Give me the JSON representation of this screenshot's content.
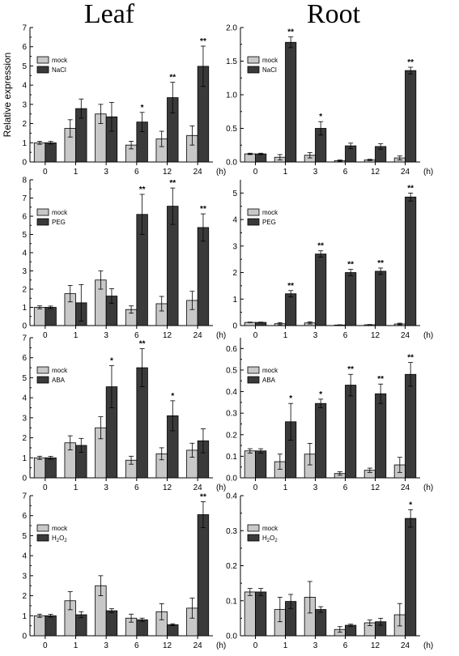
{
  "column_titles": {
    "left": "Leaf",
    "right": "Root"
  },
  "colors": {
    "mock": "#c8c8c8",
    "treatment": "#3a3a3a"
  },
  "chart_data": [
    {
      "id": "leaf-nacl",
      "type": "bar",
      "tissue": "Leaf",
      "categories": [
        "0",
        "1",
        "3",
        "6",
        "12",
        "24"
      ],
      "x_unit": "(h)",
      "ylabel": "Relative expression",
      "ylim": [
        0,
        7
      ],
      "yticks": [
        "0",
        "1",
        "2",
        "3",
        "4",
        "5",
        "6",
        "7"
      ],
      "legend": {
        "mock": "mock",
        "treatment": "NaCl"
      },
      "series": [
        {
          "name": "mock",
          "values": [
            1.0,
            1.75,
            2.5,
            0.88,
            1.2,
            1.38
          ],
          "errors": [
            0.08,
            0.45,
            0.5,
            0.2,
            0.4,
            0.5
          ]
        },
        {
          "name": "NaCl",
          "values": [
            1.0,
            2.78,
            2.35,
            2.08,
            3.35,
            4.98
          ],
          "errors": [
            0.07,
            0.5,
            0.75,
            0.5,
            0.8,
            1.05
          ]
        }
      ],
      "significance": [
        "",
        "",
        "",
        "*",
        "**",
        "**"
      ]
    },
    {
      "id": "root-nacl",
      "type": "bar",
      "tissue": "Root",
      "categories": [
        "0",
        "1",
        "3",
        "6",
        "12",
        "24"
      ],
      "x_unit": "(h)",
      "ylabel": "",
      "ylim": [
        0,
        2.0
      ],
      "yticks": [
        "0.0",
        "0.5",
        "1.0",
        "1.5",
        "2.0"
      ],
      "legend": {
        "mock": "mock",
        "treatment": "NaCl"
      },
      "series": [
        {
          "name": "mock",
          "values": [
            0.12,
            0.07,
            0.1,
            0.02,
            0.03,
            0.06
          ],
          "errors": [
            0.01,
            0.04,
            0.04,
            0.01,
            0.01,
            0.03
          ]
        },
        {
          "name": "NaCl",
          "values": [
            0.12,
            1.78,
            0.5,
            0.24,
            0.23,
            1.36
          ],
          "errors": [
            0.01,
            0.08,
            0.1,
            0.04,
            0.04,
            0.05
          ]
        }
      ],
      "significance": [
        "",
        "**",
        "*",
        "",
        "",
        "**"
      ]
    },
    {
      "id": "leaf-peg",
      "type": "bar",
      "tissue": "Leaf",
      "categories": [
        "0",
        "1",
        "3",
        "6",
        "12",
        "24"
      ],
      "x_unit": "(h)",
      "ylabel": "",
      "ylim": [
        0,
        8
      ],
      "yticks": [
        "0",
        "1",
        "2",
        "3",
        "4",
        "5",
        "6",
        "7",
        "8"
      ],
      "legend": {
        "mock": "mock",
        "treatment": "PEG"
      },
      "series": [
        {
          "name": "mock",
          "values": [
            1.0,
            1.75,
            2.5,
            0.88,
            1.2,
            1.38
          ],
          "errors": [
            0.08,
            0.45,
            0.5,
            0.2,
            0.4,
            0.5
          ]
        },
        {
          "name": "PEG",
          "values": [
            1.0,
            1.25,
            1.62,
            6.1,
            6.55,
            5.38
          ],
          "errors": [
            0.07,
            1.0,
            0.4,
            1.1,
            1.0,
            0.75
          ]
        }
      ],
      "significance": [
        "",
        "",
        "",
        "**",
        "**",
        "**"
      ]
    },
    {
      "id": "root-peg",
      "type": "bar",
      "tissue": "Root",
      "categories": [
        "0",
        "1",
        "3",
        "6",
        "12",
        "24"
      ],
      "x_unit": "(h)",
      "ylabel": "",
      "ylim": [
        0,
        5.5
      ],
      "yticks": [
        "0",
        "1",
        "2",
        "3",
        "4",
        "5"
      ],
      "legend": {
        "mock": "mock",
        "treatment": "PEG"
      },
      "series": [
        {
          "name": "mock",
          "values": [
            0.12,
            0.07,
            0.1,
            0.02,
            0.03,
            0.06
          ],
          "errors": [
            0.01,
            0.04,
            0.04,
            0.01,
            0.01,
            0.03
          ]
        },
        {
          "name": "PEG",
          "values": [
            0.12,
            1.2,
            2.7,
            2.0,
            2.05,
            4.85
          ],
          "errors": [
            0.01,
            0.12,
            0.12,
            0.12,
            0.12,
            0.15
          ]
        }
      ],
      "significance": [
        "",
        "**",
        "**",
        "**",
        "**",
        "**"
      ]
    },
    {
      "id": "leaf-aba",
      "type": "bar",
      "tissue": "Leaf",
      "categories": [
        "0",
        "1",
        "3",
        "6",
        "12",
        "24"
      ],
      "x_unit": "(h)",
      "ylabel": "",
      "ylim": [
        0,
        7
      ],
      "yticks": [
        "0",
        "1",
        "2",
        "3",
        "4",
        "5",
        "6",
        "7"
      ],
      "legend": {
        "mock": "mock",
        "treatment": "ABA"
      },
      "series": [
        {
          "name": "mock",
          "values": [
            1.0,
            1.75,
            2.5,
            0.88,
            1.2,
            1.38
          ],
          "errors": [
            0.08,
            0.35,
            0.55,
            0.2,
            0.3,
            0.35
          ]
        },
        {
          "name": "ABA",
          "values": [
            1.0,
            1.62,
            4.55,
            5.5,
            3.1,
            1.85
          ],
          "errors": [
            0.07,
            0.35,
            1.05,
            0.95,
            0.75,
            0.6
          ]
        }
      ],
      "significance": [
        "",
        "",
        "*",
        "**",
        "*",
        ""
      ]
    },
    {
      "id": "root-aba",
      "type": "bar",
      "tissue": "Root",
      "categories": [
        "0",
        "1",
        "3",
        "6",
        "12",
        "24"
      ],
      "x_unit": "(h)",
      "ylabel": "",
      "ylim": [
        0,
        0.65
      ],
      "yticks": [
        "0.0",
        "0.1",
        "0.2",
        "0.3",
        "0.4",
        "0.5",
        "0.6"
      ],
      "legend": {
        "mock": "mock",
        "treatment": "ABA"
      },
      "series": [
        {
          "name": "mock",
          "values": [
            0.125,
            0.075,
            0.11,
            0.02,
            0.035,
            0.06
          ],
          "errors": [
            0.01,
            0.035,
            0.05,
            0.008,
            0.01,
            0.035
          ]
        },
        {
          "name": "ABA",
          "values": [
            0.125,
            0.26,
            0.345,
            0.43,
            0.39,
            0.48
          ],
          "errors": [
            0.01,
            0.085,
            0.02,
            0.05,
            0.045,
            0.055
          ]
        }
      ],
      "significance": [
        "",
        "*",
        "*",
        "**",
        "**",
        "**"
      ]
    },
    {
      "id": "leaf-h2o2",
      "type": "bar",
      "tissue": "Leaf",
      "categories": [
        "0",
        "1",
        "3",
        "6",
        "12",
        "24"
      ],
      "x_unit": "(h)",
      "ylabel": "",
      "ylim": [
        0,
        7
      ],
      "yticks": [
        "0",
        "1",
        "2",
        "3",
        "4",
        "5",
        "6",
        "7"
      ],
      "legend": {
        "mock": "mock",
        "treatment": "H2O2"
      },
      "series": [
        {
          "name": "mock",
          "values": [
            1.0,
            1.75,
            2.5,
            0.88,
            1.2,
            1.38
          ],
          "errors": [
            0.08,
            0.45,
            0.5,
            0.2,
            0.4,
            0.5
          ]
        },
        {
          "name": "H2O2",
          "values": [
            1.0,
            1.05,
            1.25,
            0.8,
            0.55,
            6.05
          ],
          "errors": [
            0.07,
            0.15,
            0.1,
            0.08,
            0.05,
            0.65
          ]
        }
      ],
      "significance": [
        "",
        "",
        "",
        "",
        "",
        "**"
      ]
    },
    {
      "id": "root-h2o2",
      "type": "bar",
      "tissue": "Root",
      "categories": [
        "0",
        "1",
        "3",
        "6",
        "12",
        "24"
      ],
      "x_unit": "(h)",
      "ylabel": "",
      "ylim": [
        0,
        0.4
      ],
      "yticks": [
        "0.0",
        "0.1",
        "0.2",
        "0.3",
        "0.4"
      ],
      "legend": {
        "mock": "mock",
        "treatment": "H2O2"
      },
      "series": [
        {
          "name": "mock",
          "values": [
            0.125,
            0.075,
            0.11,
            0.018,
            0.037,
            0.06
          ],
          "errors": [
            0.01,
            0.035,
            0.045,
            0.008,
            0.008,
            0.032
          ]
        },
        {
          "name": "H2O2",
          "values": [
            0.125,
            0.098,
            0.075,
            0.03,
            0.04,
            0.335
          ],
          "errors": [
            0.01,
            0.02,
            0.008,
            0.003,
            0.01,
            0.025
          ]
        }
      ],
      "significance": [
        "",
        "",
        "",
        "",
        "",
        "*"
      ]
    }
  ]
}
